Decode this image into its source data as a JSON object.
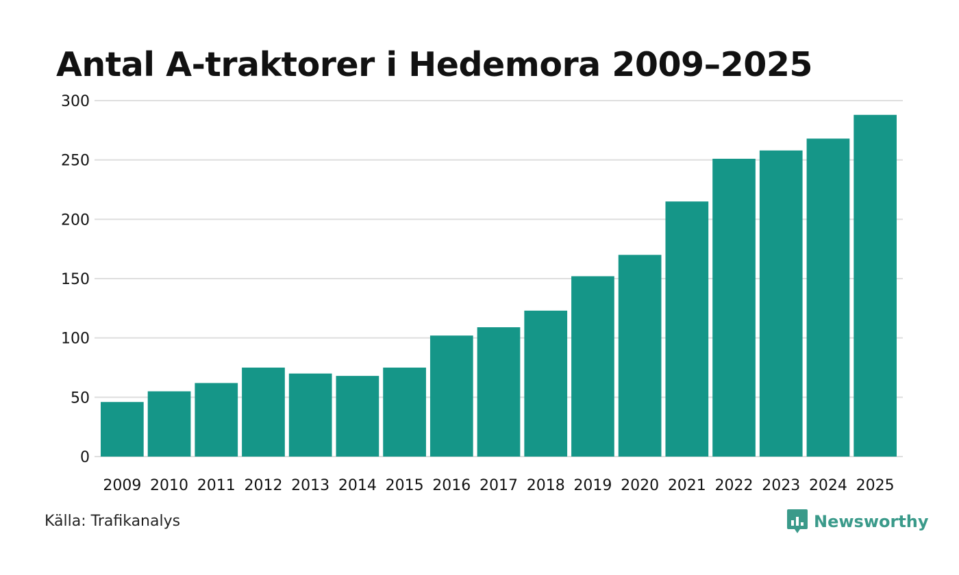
{
  "colors": {
    "bar": "#159688",
    "grid": "#dedede",
    "text": "#111111",
    "brand": "#3a9a8a"
  },
  "chart_data": {
    "type": "bar",
    "title": "Antal A-traktorer i Hedemora 2009–2025",
    "xlabel": "",
    "ylabel": "",
    "categories": [
      "2009",
      "2010",
      "2011",
      "2012",
      "2013",
      "2014",
      "2015",
      "2016",
      "2017",
      "2018",
      "2019",
      "2020",
      "2021",
      "2022",
      "2023",
      "2024",
      "2025"
    ],
    "values": [
      46,
      55,
      62,
      75,
      70,
      68,
      75,
      102,
      109,
      123,
      152,
      170,
      215,
      251,
      258,
      268,
      288
    ],
    "ylim": [
      0,
      300
    ],
    "yticks": [
      0,
      50,
      100,
      150,
      200,
      250,
      300
    ],
    "grid": true,
    "legend": "none"
  },
  "footer": {
    "source": "Källa: Trafikanalys",
    "brand": "Newsworthy",
    "brand_icon": "bar-chart-speech-bubble-icon"
  }
}
